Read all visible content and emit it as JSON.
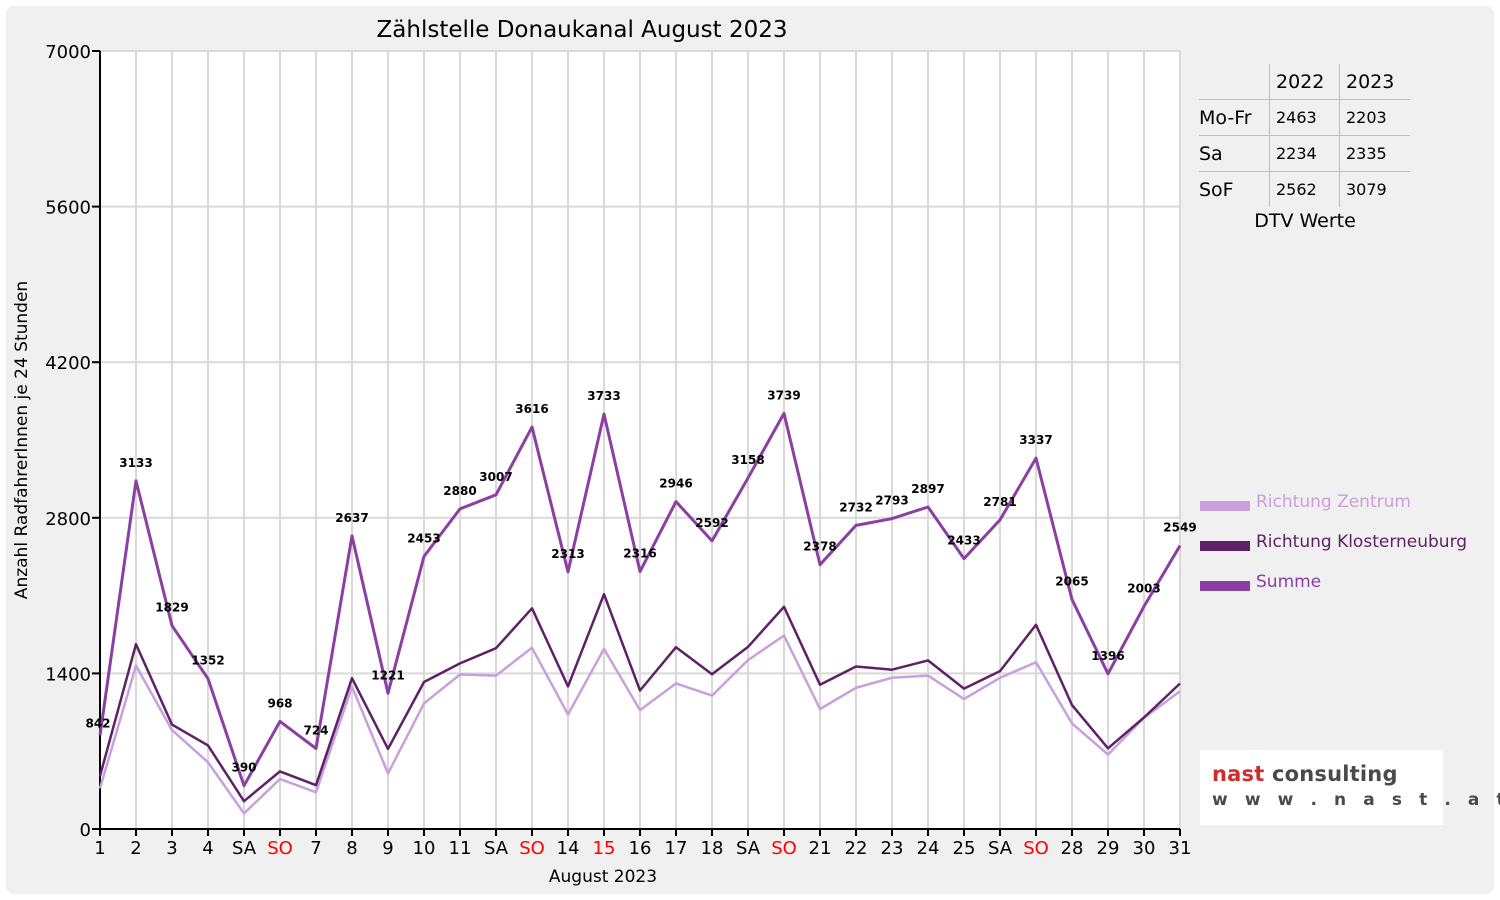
{
  "chart_data": {
    "type": "line",
    "title": "Zählstelle Donaukanal August 2023",
    "xlabel": "August 2023",
    "ylabel": "Anzahl RadfahrerInnen je 24 Stunden",
    "ylim": [
      0,
      7000
    ],
    "yticks": [
      0,
      1400,
      2800,
      4200,
      5600,
      7000
    ],
    "grid": true,
    "legend_position": "right",
    "categories": [
      "1",
      "2",
      "3",
      "4",
      "SA",
      "SO",
      "7",
      "8",
      "9",
      "10",
      "11",
      "SA",
      "SO",
      "14",
      "15",
      "16",
      "17",
      "18",
      "SA",
      "SO",
      "21",
      "22",
      "23",
      "24",
      "25",
      "SA",
      "SO",
      "28",
      "29",
      "30",
      "31"
    ],
    "red_categories": [
      5,
      12,
      14,
      19,
      26
    ],
    "series": [
      {
        "name": "Richtung Zentrum",
        "color": "#c9a0dc",
        "values": [
          365,
          1470,
          890,
          600,
          140,
          450,
          330,
          1280,
          500,
          1130,
          1390,
          1380,
          1630,
          1030,
          1620,
          1070,
          1310,
          1200,
          1520,
          1740,
          1080,
          1270,
          1360,
          1380,
          1170,
          1360,
          1500,
          950,
          670,
          1000,
          1240
        ]
      },
      {
        "name": "Richtung Klosterneuburg",
        "color": "#5e2166",
        "values": [
          477,
          1663,
          939,
          752,
          250,
          518,
          394,
          1357,
          721,
          1323,
          1490,
          1627,
          1986,
          1283,
          2113,
          1246,
          1636,
          1392,
          1638,
          1999,
          1298,
          1462,
          1433,
          1517,
          1263,
          1421,
          1837,
          1115,
          726,
          1003,
          1309
        ]
      },
      {
        "name": "Summe",
        "color": "#8b3fa3",
        "values": [
          842,
          3133,
          1829,
          1352,
          390,
          968,
          724,
          2637,
          1221,
          2453,
          2880,
          3007,
          3616,
          2313,
          3733,
          2316,
          2946,
          2592,
          3158,
          3739,
          2378,
          2732,
          2793,
          2897,
          2433,
          2781,
          3337,
          2065,
          1396,
          2003,
          2549
        ],
        "labels": [
          "842",
          "3133",
          "1829",
          "1352",
          "390",
          "968",
          "724",
          "2637",
          "1221",
          "2453",
          "2880",
          "3007",
          "3616",
          "2313",
          "3733",
          "2316",
          "2946",
          "2592",
          "3158",
          "3739",
          "2378",
          "2732",
          "2793",
          "2897",
          "2433",
          "2781",
          "3337",
          "2065",
          "1396",
          "2003",
          "2549"
        ]
      }
    ]
  },
  "dtv_table": {
    "header": [
      "",
      "2022",
      "2023"
    ],
    "rows": [
      {
        "label": "Mo-Fr",
        "v2022": "2463",
        "v2023": "2203"
      },
      {
        "label": "Sa",
        "v2022": "2234",
        "v2023": "2335"
      },
      {
        "label": "SoF",
        "v2022": "2562",
        "v2023": "3079"
      }
    ],
    "caption": "DTV Werte"
  },
  "logo": {
    "word1": "nast",
    "word2": " consulting",
    "url": "w w w . n a s t . a t",
    "color_red": "#d32b2b",
    "color_dark": "#4a4a4a"
  }
}
